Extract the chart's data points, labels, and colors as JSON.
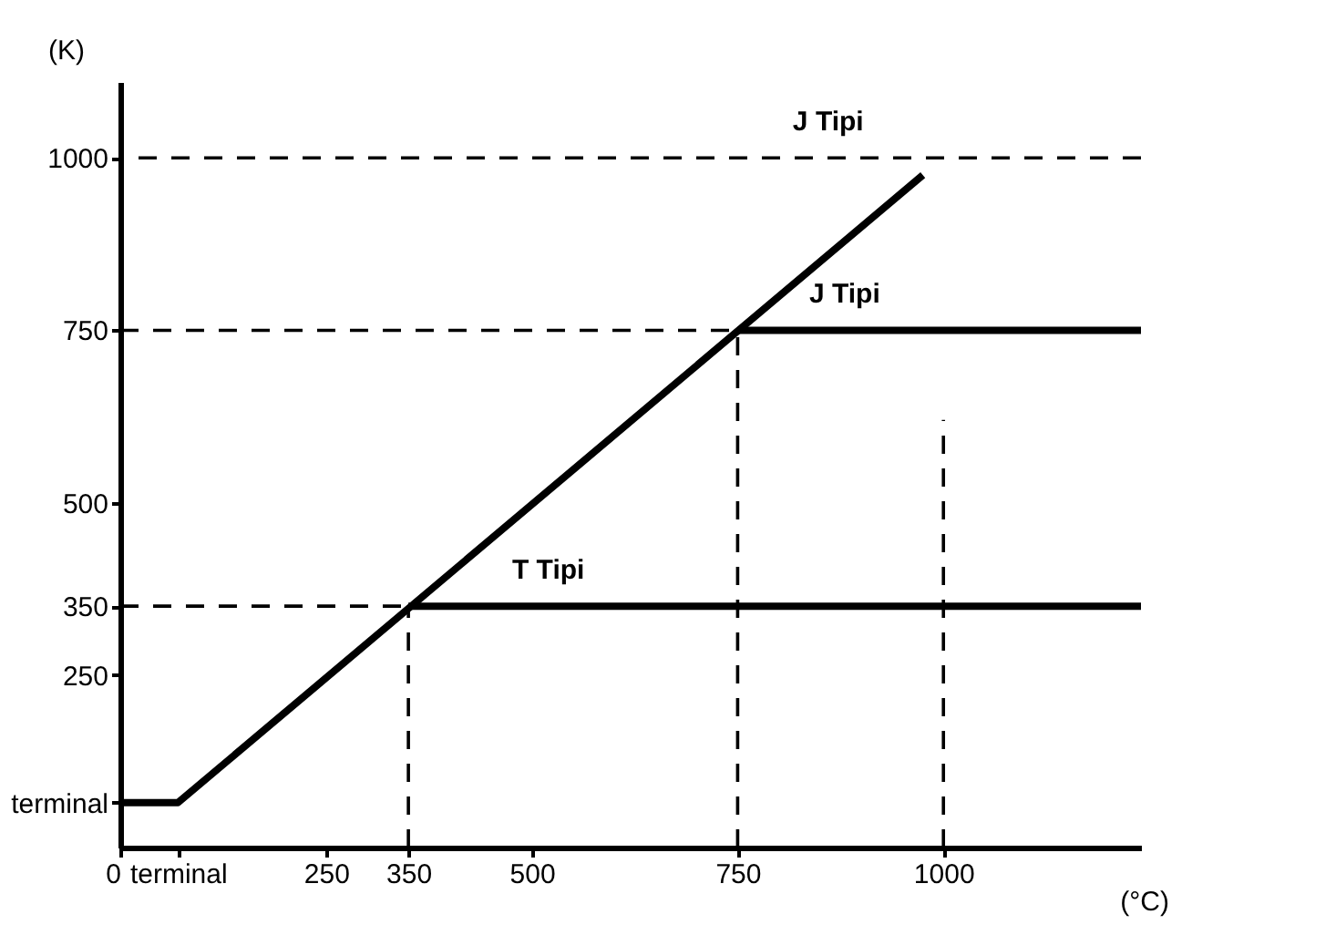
{
  "chart_data": {
    "type": "line",
    "xlabel": "(°C)",
    "ylabel": "(K)",
    "xlim": [
      0,
      1240
    ],
    "ylim": [
      0,
      1110
    ],
    "xticks": [
      0,
      {
        "value": 70,
        "label": "terminal"
      },
      250,
      350,
      500,
      750,
      1000
    ],
    "yticks": [
      {
        "value": 65,
        "label": "terminal"
      },
      250,
      350,
      500,
      750,
      1000
    ],
    "grid": false,
    "legend": false,
    "marker": "none",
    "series": [
      {
        "color": "#000000",
        "line_style": "solid",
        "x": [
          0,
          70,
          975
        ],
        "values": [
          65,
          65,
          975
        ]
      },
      {
        "color": "#000000",
        "line_style": "solid",
        "x": [
          350,
          1240
        ],
        "values": [
          350,
          350
        ]
      },
      {
        "color": "#000000",
        "line_style": "solid",
        "x": [
          750,
          1240
        ],
        "values": [
          750,
          750
        ]
      },
      {
        "color": "#000000",
        "line_style": "dashed",
        "x": [
          0,
          350
        ],
        "values": [
          350,
          350
        ]
      },
      {
        "color": "#000000",
        "line_style": "dashed",
        "x": [
          0,
          750
        ],
        "values": [
          750,
          750
        ]
      },
      {
        "color": "#000000",
        "line_style": "dashed",
        "x": [
          350,
          350
        ],
        "values": [
          0,
          350
        ]
      },
      {
        "color": "#000000",
        "line_style": "dashed",
        "x": [
          750,
          750
        ],
        "values": [
          0,
          750
        ]
      },
      {
        "color": "#000000",
        "line_style": "dashed",
        "x": [
          1000,
          1000
        ],
        "values": [
          0,
          620
        ]
      }
    ],
    "ref_lines": [
      {
        "axis": "y",
        "value": 1000,
        "label": null,
        "color": "#000000",
        "line_style": "dashed"
      }
    ],
    "annotations": [
      {
        "text": "J Tipi",
        "x": 860,
        "y": 1000
      },
      {
        "text": "J Tipi",
        "x": 880,
        "y": 750
      },
      {
        "text": "T Tipi",
        "x": 520,
        "y": 350
      }
    ]
  }
}
